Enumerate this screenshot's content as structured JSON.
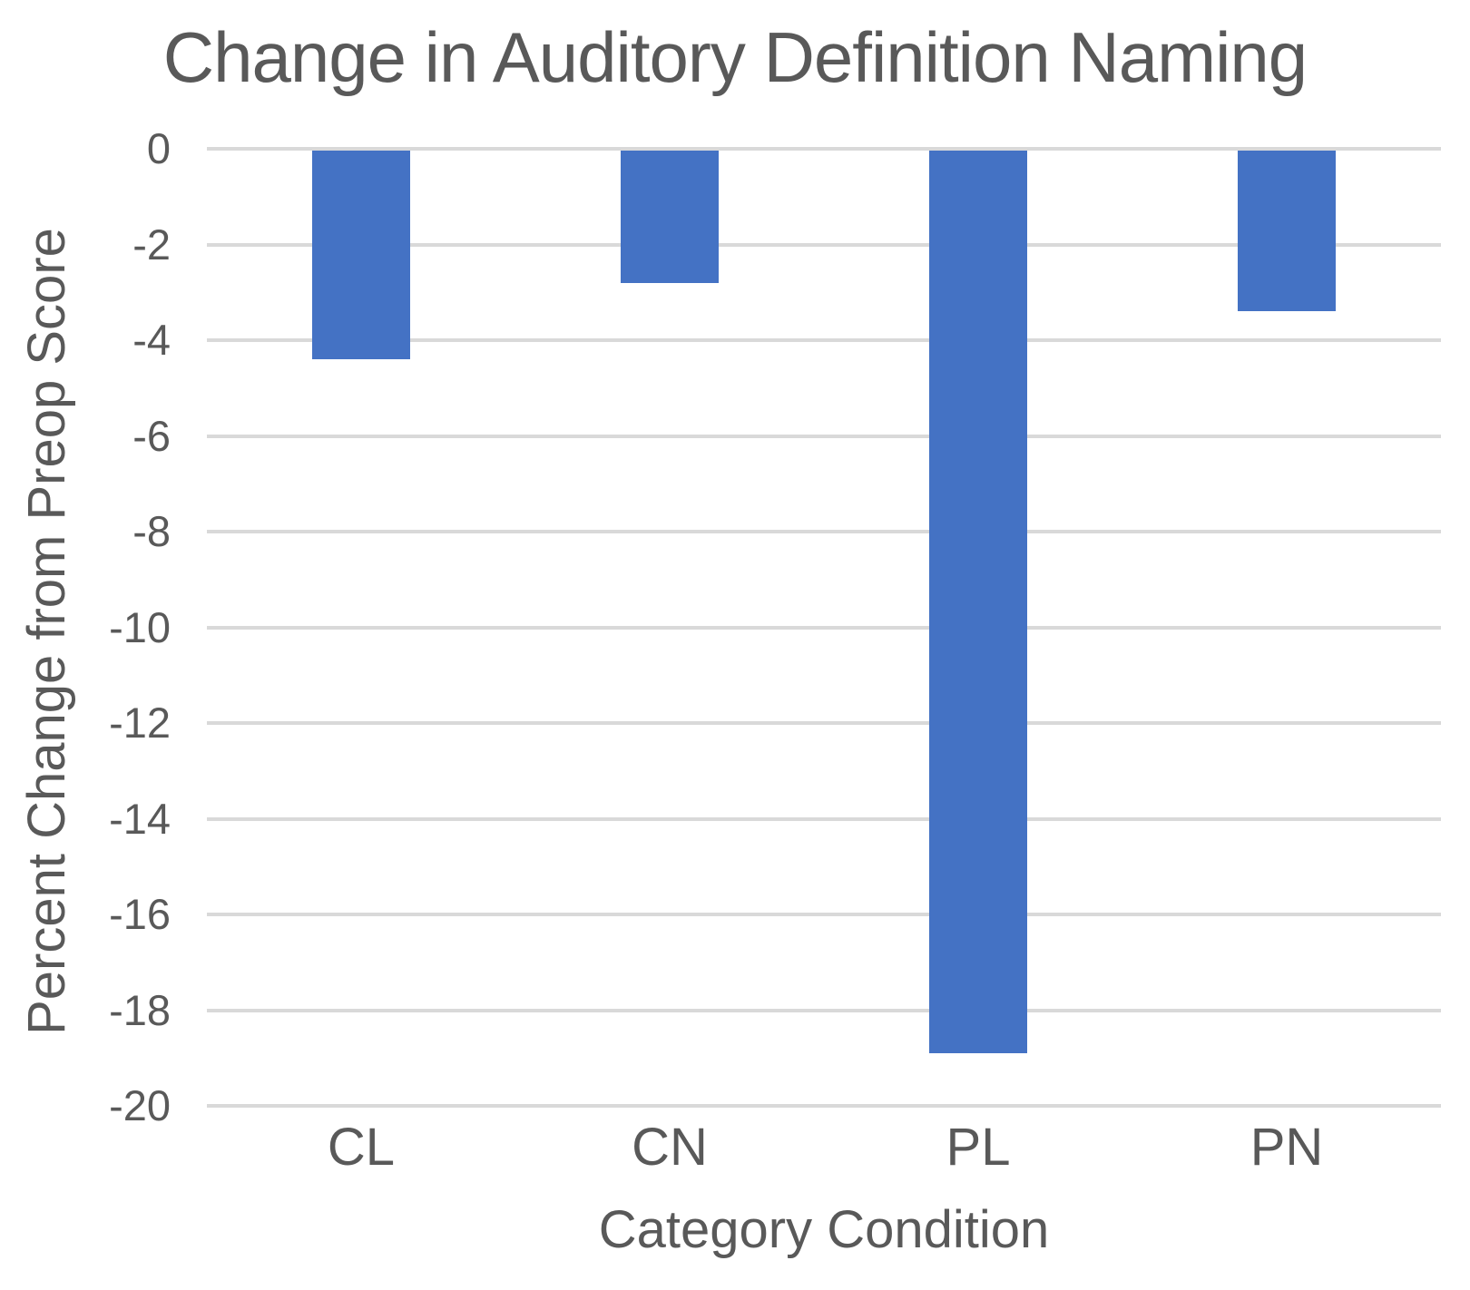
{
  "chart_data": {
    "type": "bar",
    "title": "Change in Auditory Definition Naming",
    "xlabel": "Category Condition",
    "ylabel": "Percent Change from Preop Score",
    "categories": [
      "CL",
      "CN",
      "PL",
      "PN"
    ],
    "values": [
      -4.4,
      -2.8,
      -18.9,
      -3.4
    ],
    "ylim": [
      -20,
      0
    ],
    "yticks": [
      0,
      -2,
      -4,
      -6,
      -8,
      -10,
      -12,
      -14,
      -16,
      -18,
      -20
    ],
    "grid": true,
    "legend": "none",
    "bar_color": "#4472c4",
    "text_color": "#595959",
    "gridline_color": "#d9d9d9",
    "background_color": "#ffffff"
  }
}
